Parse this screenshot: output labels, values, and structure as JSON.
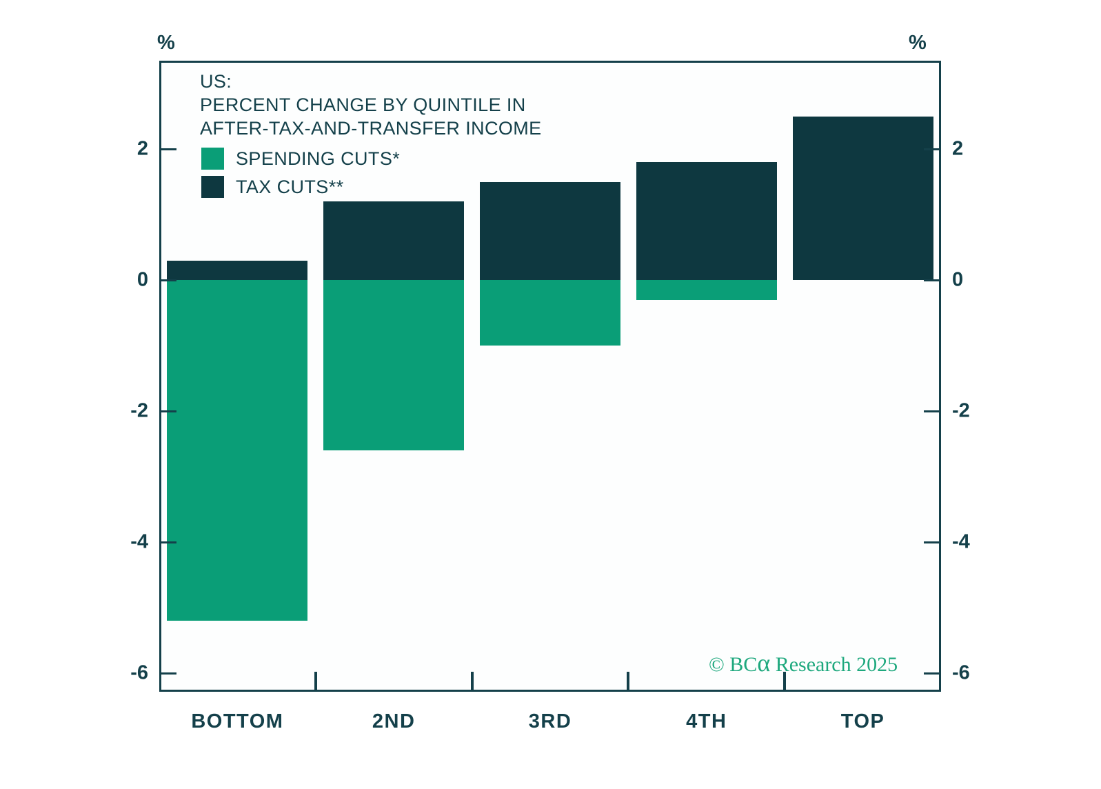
{
  "chart_data": {
    "type": "bar",
    "stacked": true,
    "title_lines": [
      "US:",
      "PERCENT CHANGE BY QUINTILE IN",
      "AFTER-TAX-AND-TRANSFER INCOME"
    ],
    "categories": [
      "BOTTOM",
      "2ND",
      "3RD",
      "4TH",
      "TOP"
    ],
    "series": [
      {
        "name": "SPENDING CUTS*",
        "color": "#0a9e77",
        "values": [
          -5.2,
          -2.6,
          -1.0,
          -0.3,
          0.0
        ]
      },
      {
        "name": "TAX CUTS**",
        "color": "#0e3840",
        "values": [
          0.3,
          1.2,
          1.5,
          1.8,
          2.5
        ]
      }
    ],
    "y_ticks": [
      2,
      0,
      -2,
      -4,
      -6
    ],
    "y_tick_labels": [
      "2",
      "0",
      "-2",
      "-4",
      "-6"
    ],
    "ylim": [
      -6.28,
      3.35
    ],
    "xlabel": "",
    "ylabel": "%",
    "grid": false,
    "legend_position": "top-left"
  },
  "axis_units": {
    "left": "%",
    "right": "%"
  },
  "watermark": {
    "prefix": "© BC",
    "alpha": "α",
    "suffix": " Research 2025",
    "color": "#1da87d"
  }
}
